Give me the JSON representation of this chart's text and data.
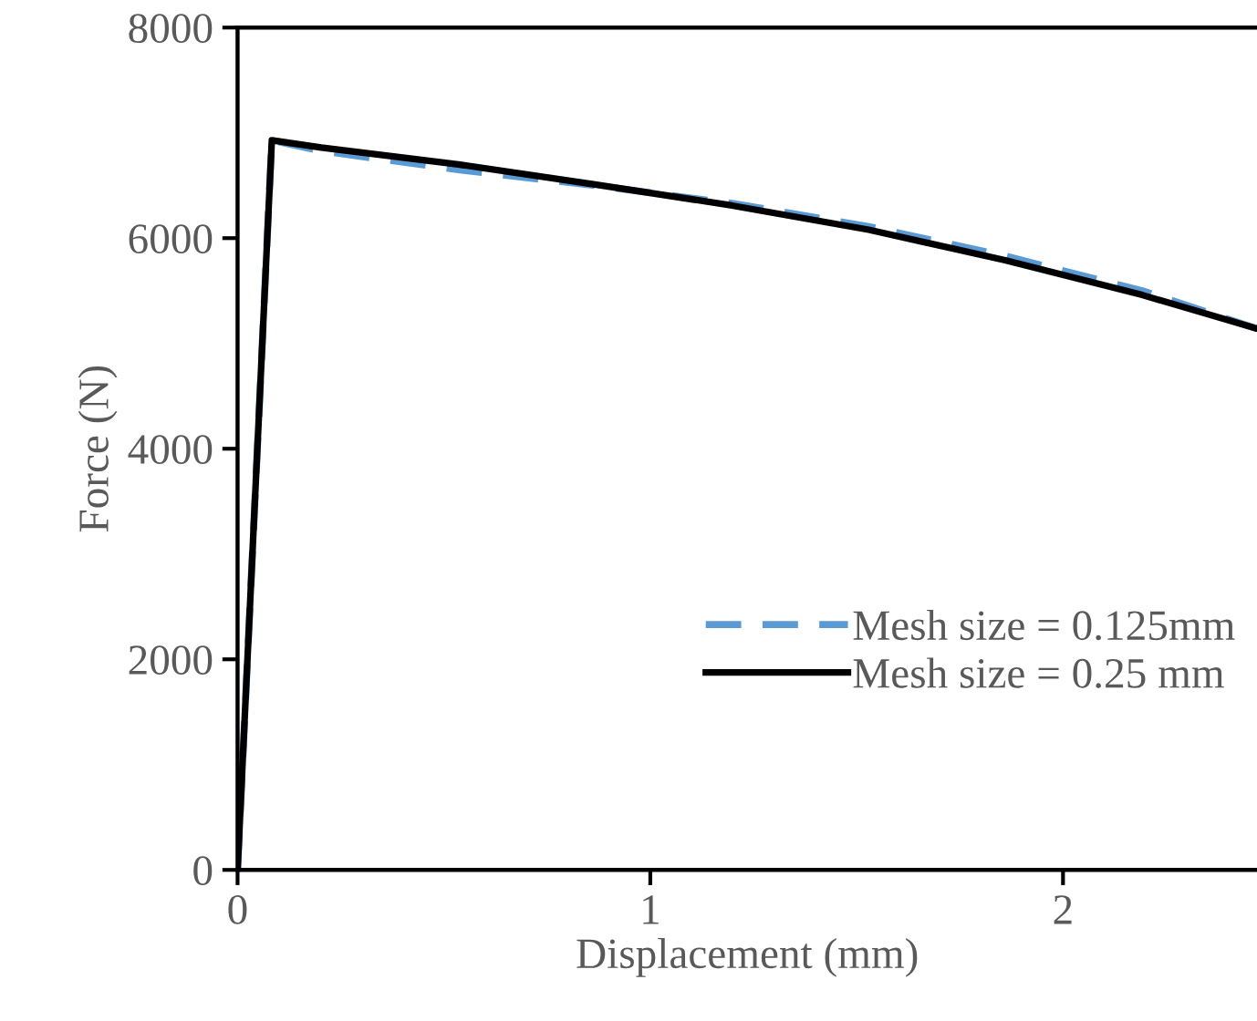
{
  "chart_data": {
    "type": "line",
    "xlabel": "Displacement (mm)",
    "ylabel": "Force (N)",
    "xlim": [
      0,
      2.47
    ],
    "ylim": [
      0,
      8000
    ],
    "xticks": [
      0,
      1,
      2
    ],
    "yticks": [
      0,
      2000,
      4000,
      6000,
      8000
    ],
    "grid": false,
    "legend": "bottom right",
    "marker": "none",
    "series": [
      {
        "name": "Mesh size = 0.125mm",
        "color": "#5b9bd5",
        "line_style": "dashed",
        "x": [
          0,
          0.083,
          0.2,
          0.535,
          0.866,
          1.198,
          1.529,
          1.86,
          2.192,
          2.47
        ],
        "values": [
          0,
          6930,
          6830,
          6650,
          6500,
          6330,
          6110,
          5830,
          5500,
          5140
        ]
      },
      {
        "name": "Mesh size = 0.25 mm",
        "color": "#000000",
        "line_style": "solid",
        "x": [
          0,
          0.083,
          0.203,
          0.535,
          0.866,
          1.198,
          1.529,
          1.86,
          2.192,
          2.47
        ],
        "values": [
          0,
          6930,
          6860,
          6700,
          6510,
          6310,
          6080,
          5790,
          5460,
          5140
        ]
      }
    ]
  }
}
